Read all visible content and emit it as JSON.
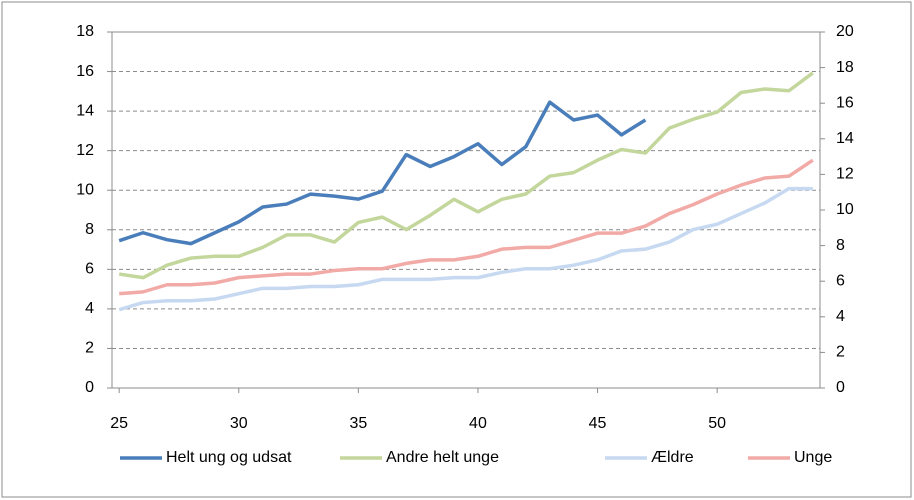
{
  "chart_data": {
    "type": "line",
    "x": [
      25,
      26,
      27,
      28,
      29,
      30,
      31,
      32,
      33,
      34,
      35,
      36,
      37,
      38,
      39,
      40,
      41,
      42,
      43,
      44,
      45,
      46,
      47,
      48,
      49,
      50,
      51,
      52,
      53,
      54
    ],
    "xlim": [
      24.7,
      54.3
    ],
    "xticks": [
      25,
      30,
      35,
      40,
      45,
      50
    ],
    "ylim": [
      0,
      18
    ],
    "yticks": [
      0,
      2,
      4,
      6,
      8,
      10,
      12,
      14,
      16,
      18
    ],
    "y2lim": [
      0,
      20
    ],
    "y2ticks": [
      0,
      2,
      4,
      6,
      8,
      10,
      12,
      14,
      16,
      18,
      20
    ],
    "grid": true,
    "legend": "bottom",
    "series": [
      {
        "name": "Helt ung og udsat",
        "color": "#4a7ebb",
        "axis": "y",
        "values": [
          7.45,
          7.85,
          7.5,
          7.3,
          7.85,
          8.4,
          9.15,
          9.3,
          9.8,
          9.7,
          9.55,
          9.95,
          11.8,
          11.2,
          11.7,
          12.35,
          11.3,
          12.2,
          14.45,
          13.55,
          13.8,
          12.8,
          13.55,
          null,
          null,
          null,
          null,
          null,
          null,
          null
        ]
      },
      {
        "name": "Andre helt unge",
        "color": "#c3d69b",
        "axis": "y2",
        "values": [
          6.4,
          6.2,
          6.9,
          7.3,
          7.4,
          7.4,
          7.9,
          8.6,
          8.6,
          8.2,
          9.3,
          9.6,
          8.9,
          9.7,
          10.6,
          9.9,
          10.6,
          10.9,
          11.9,
          12.1,
          12.8,
          13.4,
          13.2,
          14.6,
          15.1,
          15.5,
          16.6,
          16.8,
          16.7,
          17.7
        ]
      },
      {
        "name": "Ældre",
        "color": "#c6d9f1",
        "axis": "y2",
        "values": [
          4.4,
          4.8,
          4.9,
          4.9,
          5.0,
          5.3,
          5.6,
          5.6,
          5.7,
          5.7,
          5.8,
          6.1,
          6.1,
          6.1,
          6.2,
          6.2,
          6.5,
          6.7,
          6.7,
          6.9,
          7.2,
          7.7,
          7.8,
          8.2,
          8.9,
          9.2,
          9.8,
          10.4,
          11.2,
          11.2
        ]
      },
      {
        "name": "Unge",
        "color": "#f2aaa7",
        "axis": "y2",
        "values": [
          5.3,
          5.4,
          5.8,
          5.8,
          5.9,
          6.2,
          6.3,
          6.4,
          6.4,
          6.6,
          6.7,
          6.7,
          7.0,
          7.2,
          7.2,
          7.4,
          7.8,
          7.9,
          7.9,
          8.3,
          8.7,
          8.7,
          9.1,
          9.8,
          10.3,
          10.9,
          11.4,
          11.8,
          11.9,
          12.8
        ]
      }
    ]
  }
}
